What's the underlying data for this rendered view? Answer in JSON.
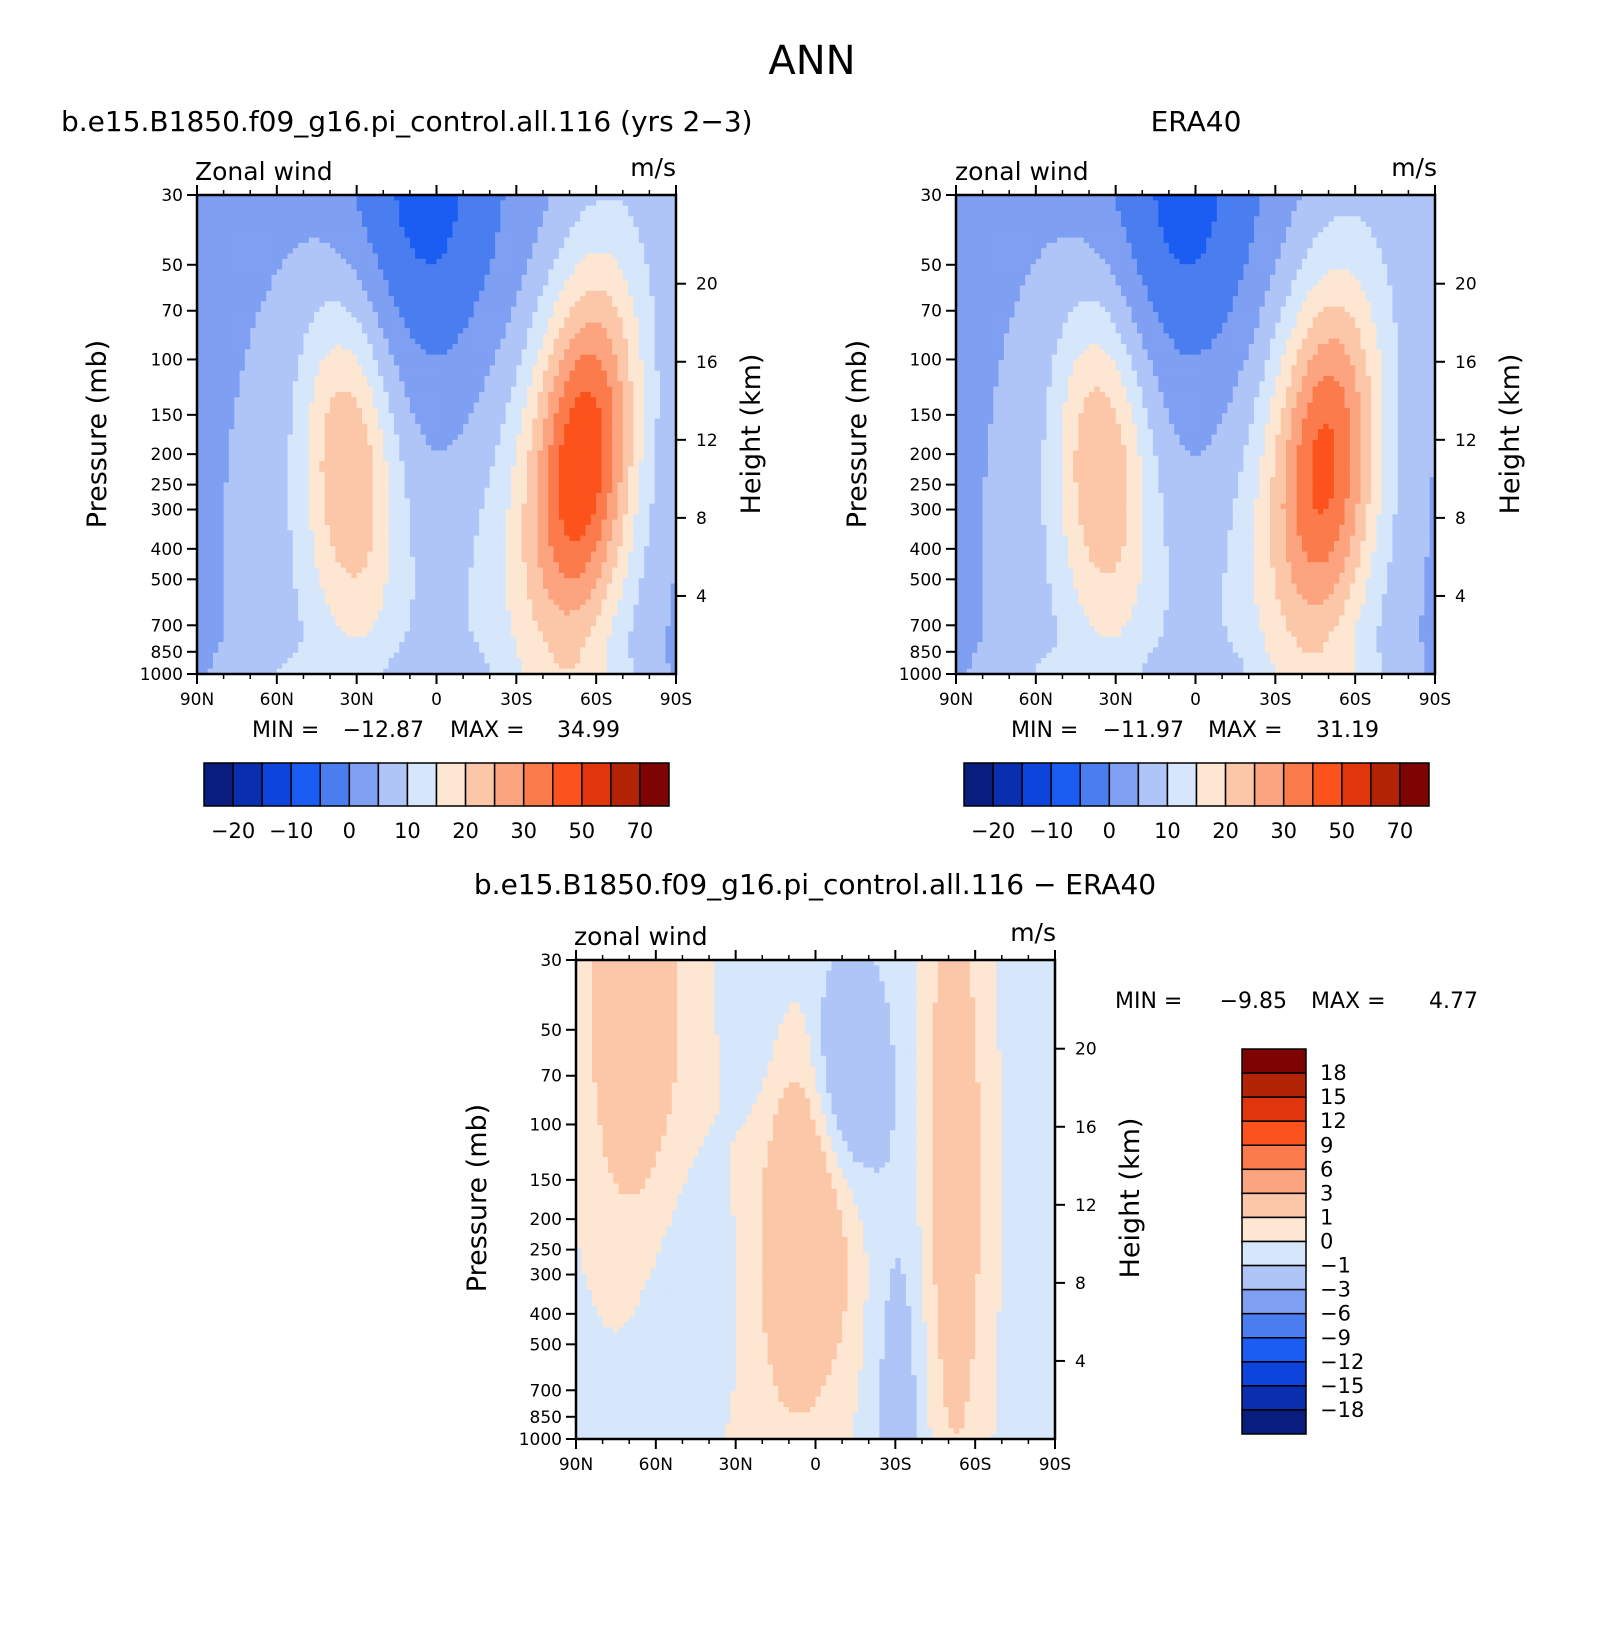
{
  "figure_title": "ANN",
  "colors": {
    "full_palette": [
      "#081d7e",
      "#0a2fae",
      "#0d45dc",
      "#1b5cf2",
      "#4a7ef0",
      "#7f9ff2",
      "#afc5f7",
      "#d6e7fb",
      "#fde6d2",
      "#fcc6a8",
      "#fca37f",
      "#fb7b4c",
      "#fb531b",
      "#e1350b",
      "#b32306",
      "#7e0404"
    ],
    "diff_palette": [
      "#081d7e",
      "#0a2fae",
      "#0d45dc",
      "#1b5cf2",
      "#4a7ef0",
      "#7f9ff2",
      "#afc5f7",
      "#d6e7fb",
      "#fde6d2",
      "#fcc6a8",
      "#fca37f",
      "#fb7b4c",
      "#fb531b",
      "#e1350b",
      "#b32306",
      "#7e0404"
    ]
  },
  "chart_data": [
    {
      "type": "heatmap",
      "title": "b.e15.B1850.f09_g16.pi_control.all.116 (yrs 2−3)",
      "left_label": "Zonal wind",
      "right_label": "m/s",
      "ylabel": "Pressure (mb)",
      "y2label": "Height (km)",
      "x_ticks": [
        "90N",
        "60N",
        "30N",
        "0",
        "30S",
        "60S",
        "90S"
      ],
      "y_ticks": [
        "30",
        "50",
        "70",
        "100",
        "150",
        "200",
        "250",
        "300",
        "400",
        "500",
        "700",
        "850",
        "1000"
      ],
      "y2_ticks": [
        "20",
        "16",
        "12",
        "8",
        "4"
      ],
      "min_label": "MIN =",
      "min": "−12.87",
      "max_label": "MAX =",
      "max": "34.99",
      "colorbar_labels": [
        "−20",
        "−10",
        "0",
        "10",
        "20",
        "30",
        "50",
        "70"
      ],
      "jets": {
        "north_max_ms": 22,
        "north_lat": 30,
        "north_p": 200,
        "south_max_ms": 34.99,
        "south_lat": -50,
        "south_p": 200
      }
    },
    {
      "type": "heatmap",
      "title": "ERA40",
      "left_label": "zonal wind",
      "right_label": "m/s",
      "ylabel": "Pressure (mb)",
      "y2label": "Height (km)",
      "x_ticks": [
        "90N",
        "60N",
        "30N",
        "0",
        "30S",
        "60S",
        "90S"
      ],
      "y_ticks": [
        "30",
        "50",
        "70",
        "100",
        "150",
        "200",
        "250",
        "300",
        "400",
        "500",
        "700",
        "850",
        "1000"
      ],
      "y2_ticks": [
        "20",
        "16",
        "12",
        "8",
        "4"
      ],
      "min_label": "MIN =",
      "min": "−11.97",
      "max_label": "MAX =",
      "max": "31.19",
      "colorbar_labels": [
        "−20",
        "−10",
        "0",
        "10",
        "20",
        "30",
        "50",
        "70"
      ],
      "jets": {
        "north_max_ms": 22,
        "north_lat": 33,
        "north_p": 200,
        "south_max_ms": 31.19,
        "south_lat": -45,
        "south_p": 200
      }
    },
    {
      "type": "heatmap",
      "title": "b.e15.B1850.f09_g16.pi_control.all.116 − ERA40",
      "left_label": "zonal wind",
      "right_label": "m/s",
      "ylabel": "Pressure (mb)",
      "y2label": "Height (km)",
      "x_ticks": [
        "90N",
        "60N",
        "30N",
        "0",
        "30S",
        "60S",
        "90S"
      ],
      "y_ticks": [
        "30",
        "50",
        "70",
        "100",
        "150",
        "200",
        "250",
        "300",
        "400",
        "500",
        "700",
        "850",
        "1000"
      ],
      "y2_ticks": [
        "20",
        "16",
        "12",
        "8",
        "4"
      ],
      "min_label": "MIN =",
      "min": "−9.85",
      "max_label": "MAX =",
      "max": "4.77",
      "colorbar_labels": [
        "18",
        "15",
        "12",
        "9",
        "6",
        "3",
        "1",
        "0",
        "−1",
        "−3",
        "−6",
        "−9",
        "−12",
        "−15",
        "−18"
      ]
    }
  ]
}
